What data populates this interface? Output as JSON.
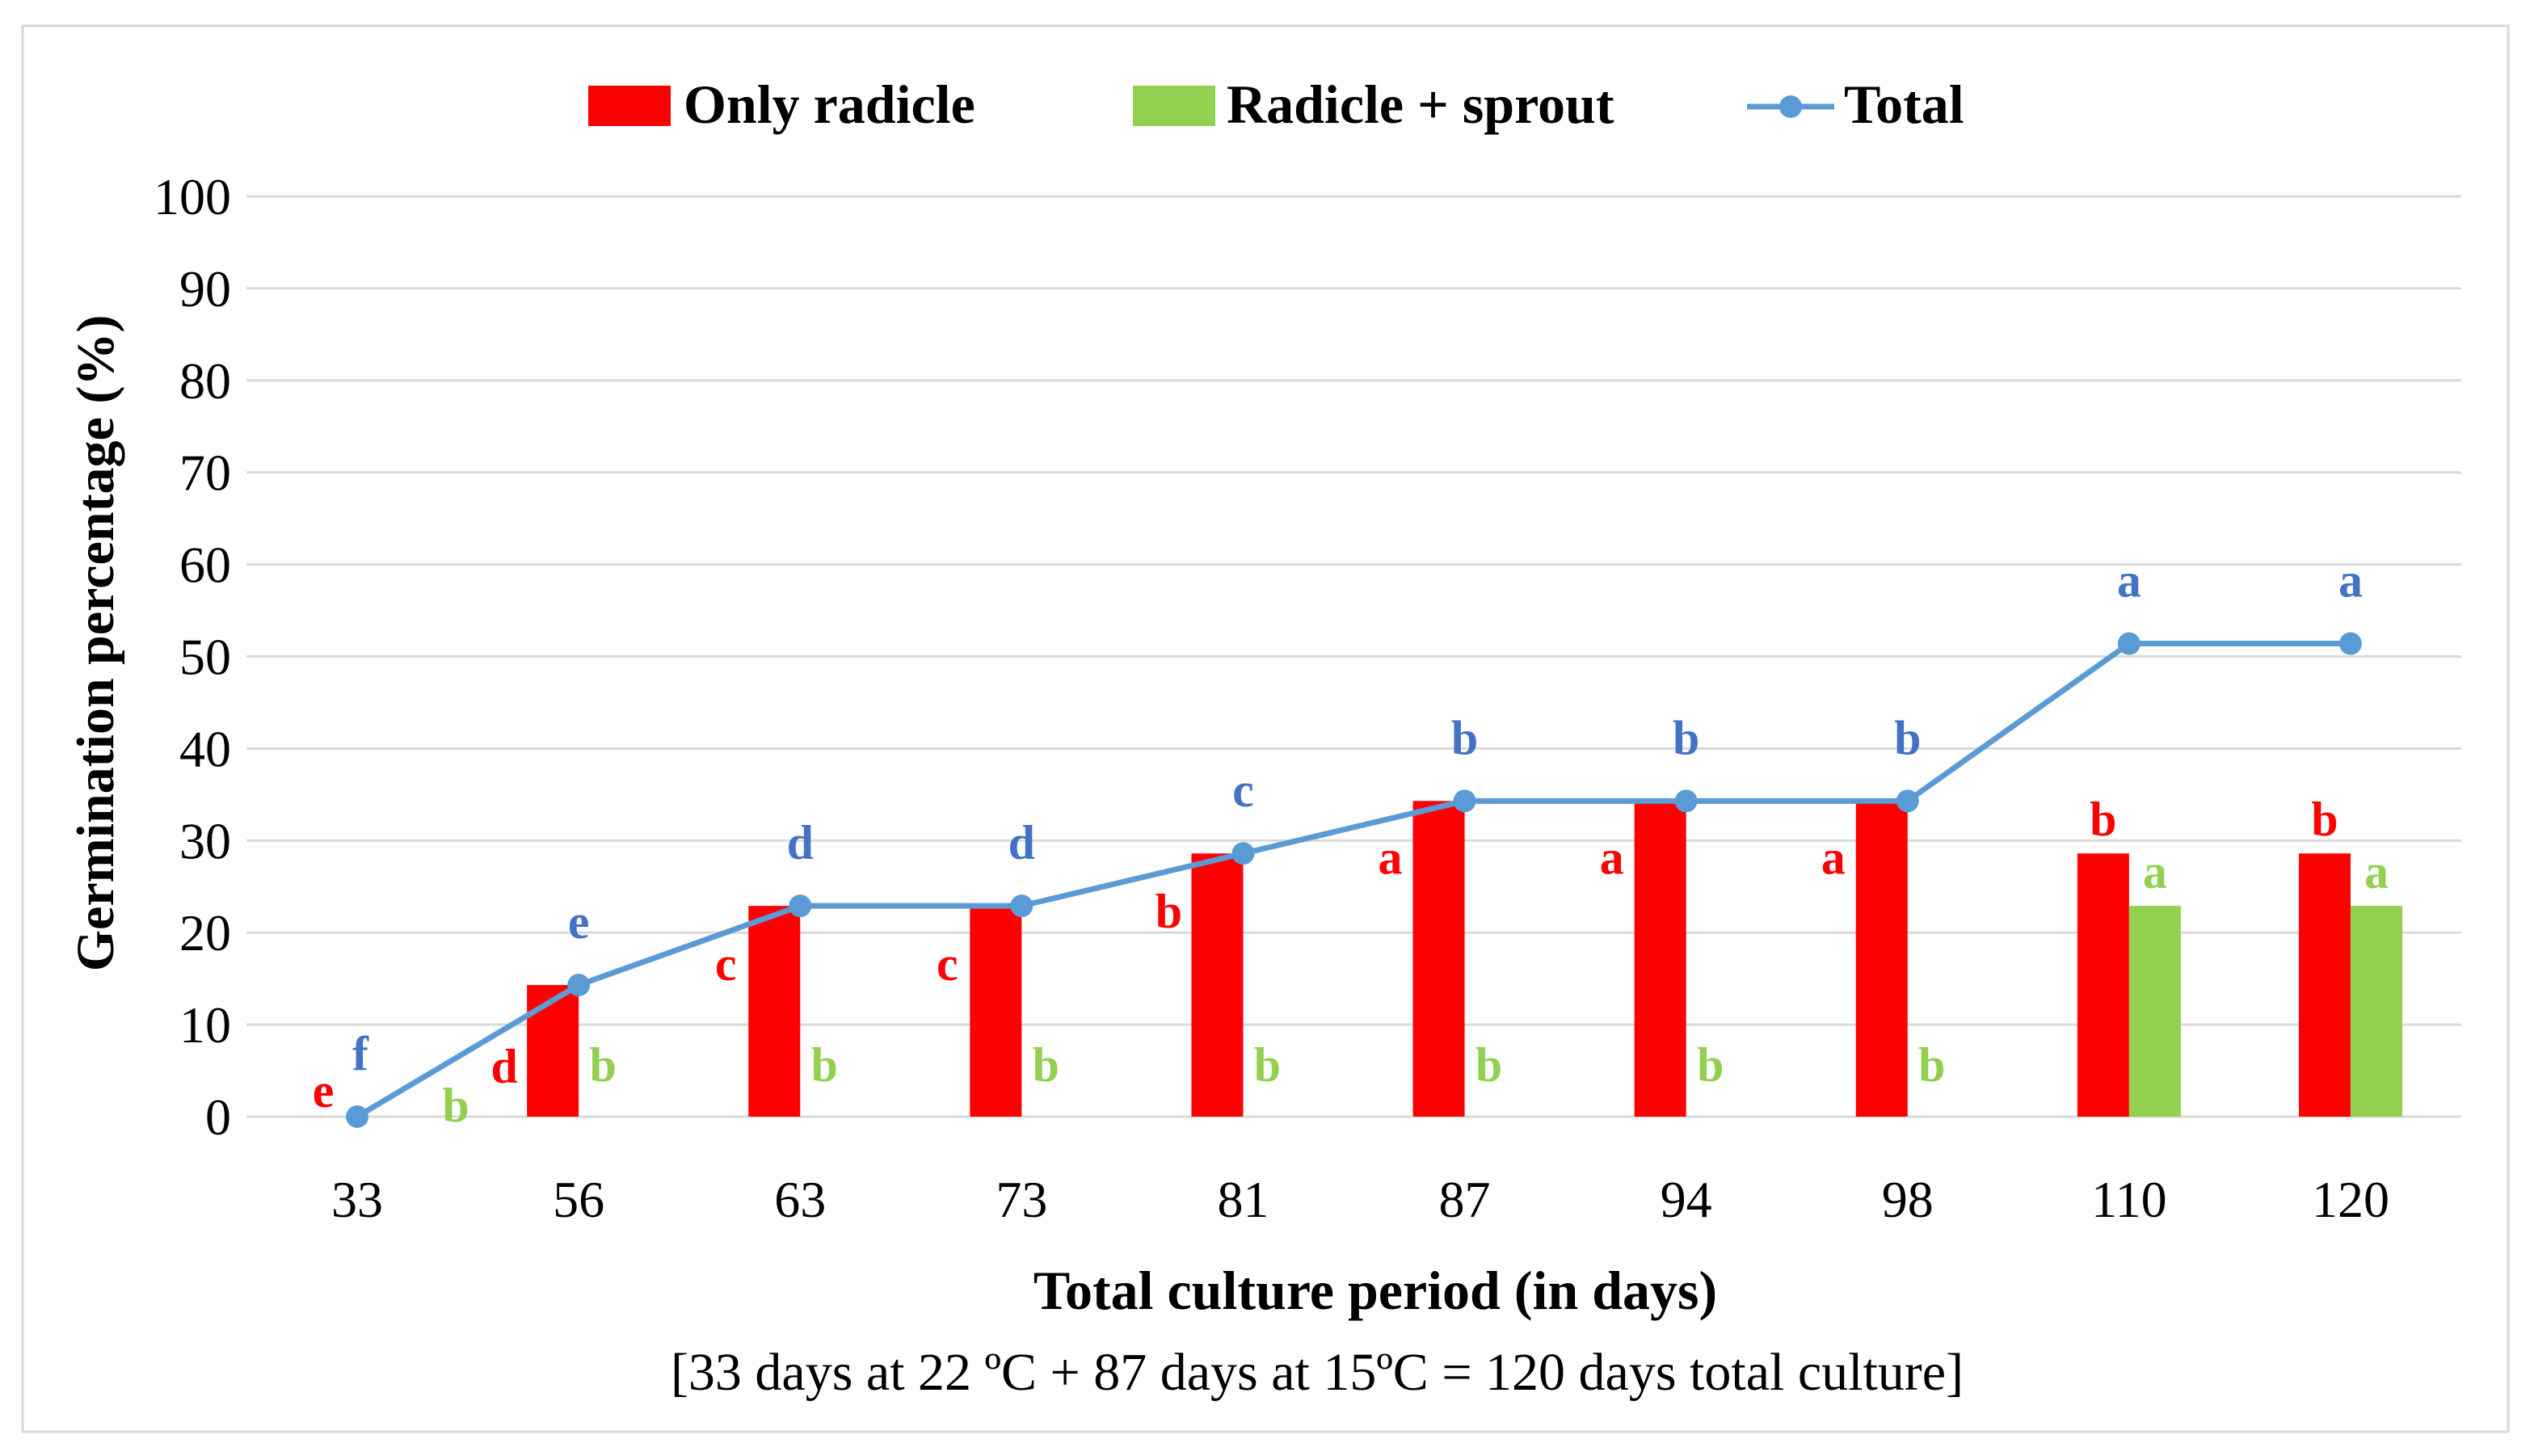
{
  "chart_data": {
    "type": "bar",
    "categories": [
      "33",
      "56",
      "63",
      "73",
      "81",
      "87",
      "94",
      "98",
      "110",
      "120"
    ],
    "series": [
      {
        "name": "Only radicle",
        "kind": "bar",
        "color": "#ff0000",
        "values": [
          0,
          14.3,
          22.9,
          22.9,
          28.6,
          34.3,
          34.3,
          34.3,
          28.6,
          28.6
        ],
        "letters": [
          "e",
          "d",
          "c",
          "c",
          "b",
          "a",
          "a",
          "a",
          "b",
          "b"
        ]
      },
      {
        "name": "Radicle + sprout",
        "kind": "bar",
        "color": "#92d050",
        "values": [
          0,
          0,
          0,
          0,
          0,
          0,
          0,
          0,
          22.9,
          22.9
        ],
        "letters": [
          "b",
          "b",
          "b",
          "b",
          "b",
          "b",
          "b",
          "b",
          "a",
          "a"
        ]
      },
      {
        "name": "Total",
        "kind": "line",
        "color": "#5b9bd5",
        "letter_color": "#4472c4",
        "values": [
          0,
          14.3,
          22.9,
          22.9,
          28.6,
          34.3,
          34.3,
          34.3,
          51.4,
          51.4
        ],
        "letters": [
          "f",
          "e",
          "d",
          "d",
          "c",
          "b",
          "b",
          "b",
          "a",
          "a"
        ]
      }
    ],
    "xlabel": "Total culture period (in days)",
    "subtitle": "[33 days at 22 ºC + 87 days at 15ºC = 120 days total culture]",
    "ylabel": "Germination percentage (%)",
    "ylim": [
      0,
      100
    ],
    "yticks": [
      0,
      10,
      20,
      30,
      40,
      50,
      60,
      70,
      80,
      90,
      100
    ],
    "grid": true,
    "legend": "top-center"
  }
}
